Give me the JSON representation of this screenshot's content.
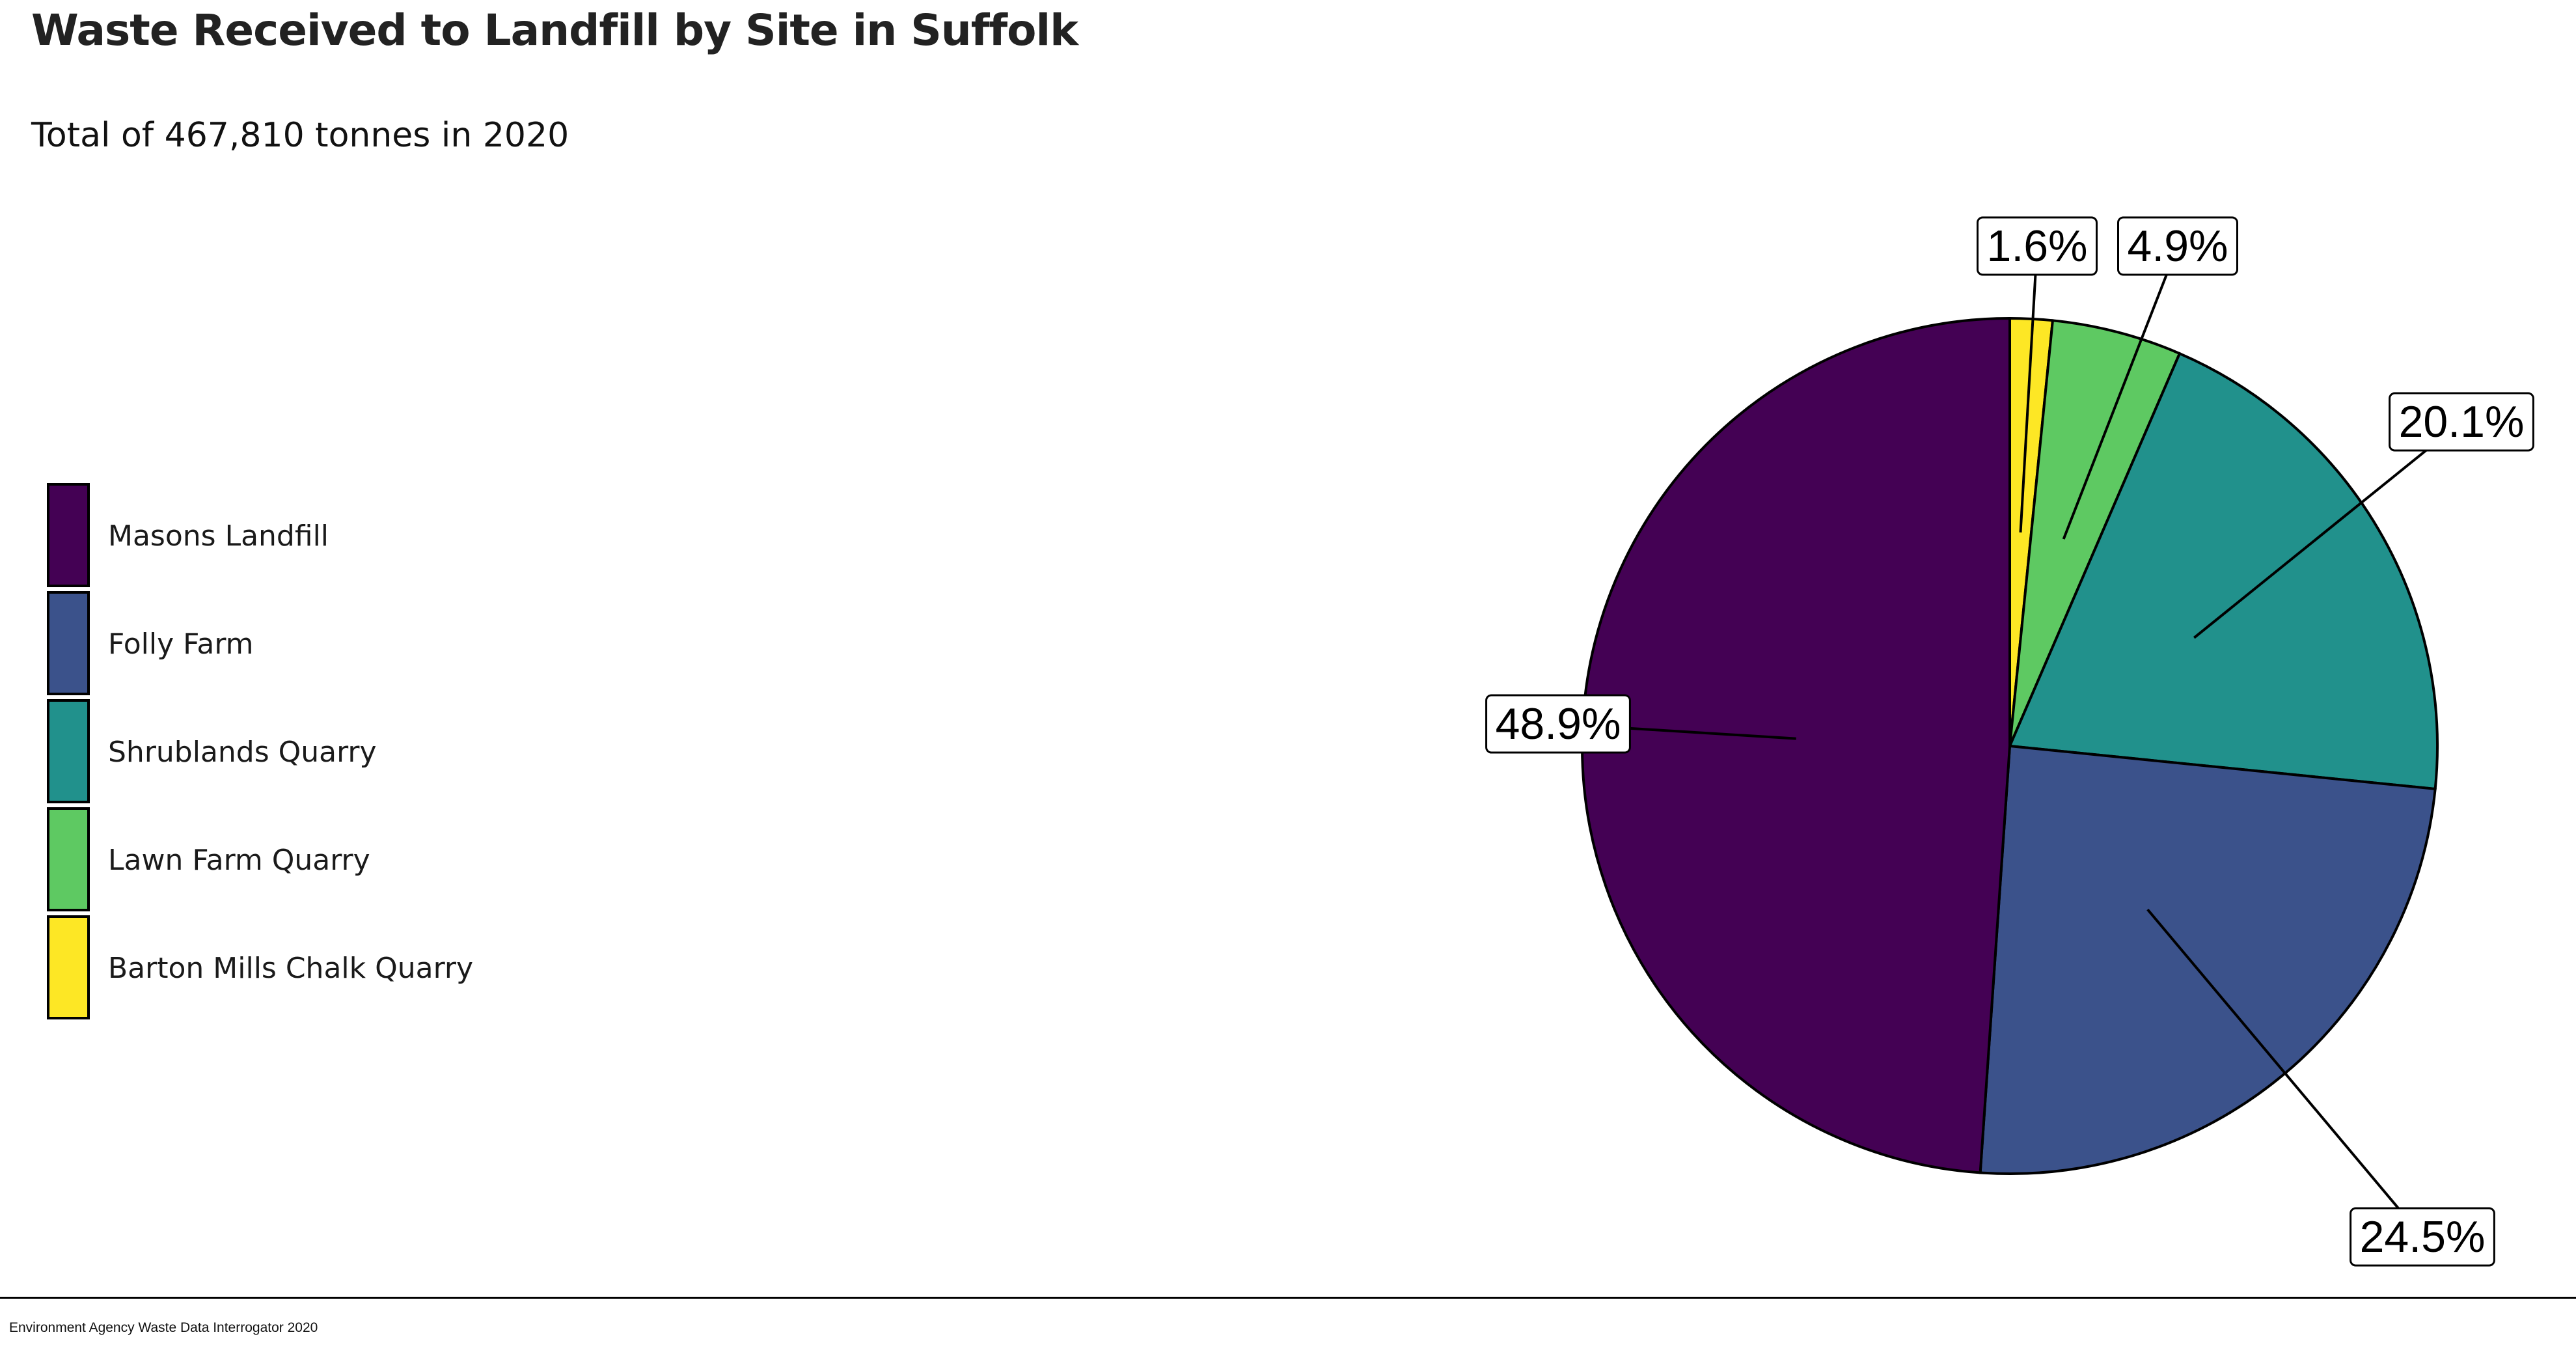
{
  "chart_data": {
    "type": "pie",
    "title": "Waste Received to Landfill by Site in Suffolk",
    "subtitle": "Total of 467,810 tonnes in 2020",
    "caption": "Environment Agency Waste Data Interrogator 2020",
    "legend_position": "left",
    "start_angle": "12 o'clock",
    "direction": "clockwise",
    "slices": [
      {
        "name": "Barton Mills Chalk Quarry",
        "value": 1.6,
        "label": "1.6%",
        "color": "#fde725"
      },
      {
        "name": "Lawn Farm Quarry",
        "value": 4.9,
        "label": "4.9%",
        "color": "#5ec962"
      },
      {
        "name": "Shrublands Quarry",
        "value": 20.1,
        "label": "20.1%",
        "color": "#21918c"
      },
      {
        "name": "Folly Farm",
        "value": 24.5,
        "label": "24.5%",
        "color": "#3b528b"
      },
      {
        "name": "Masons Landfill",
        "value": 48.9,
        "label": "48.9%",
        "color": "#440154"
      }
    ],
    "legend": [
      {
        "name": "Masons Landfill",
        "color": "#440154"
      },
      {
        "name": "Folly Farm",
        "color": "#3b528b"
      },
      {
        "name": "Shrublands Quarry",
        "color": "#21918c"
      },
      {
        "name": "Lawn Farm Quarry",
        "color": "#5ec962"
      },
      {
        "name": "Barton Mills Chalk Quarry",
        "color": "#fde725"
      }
    ]
  }
}
